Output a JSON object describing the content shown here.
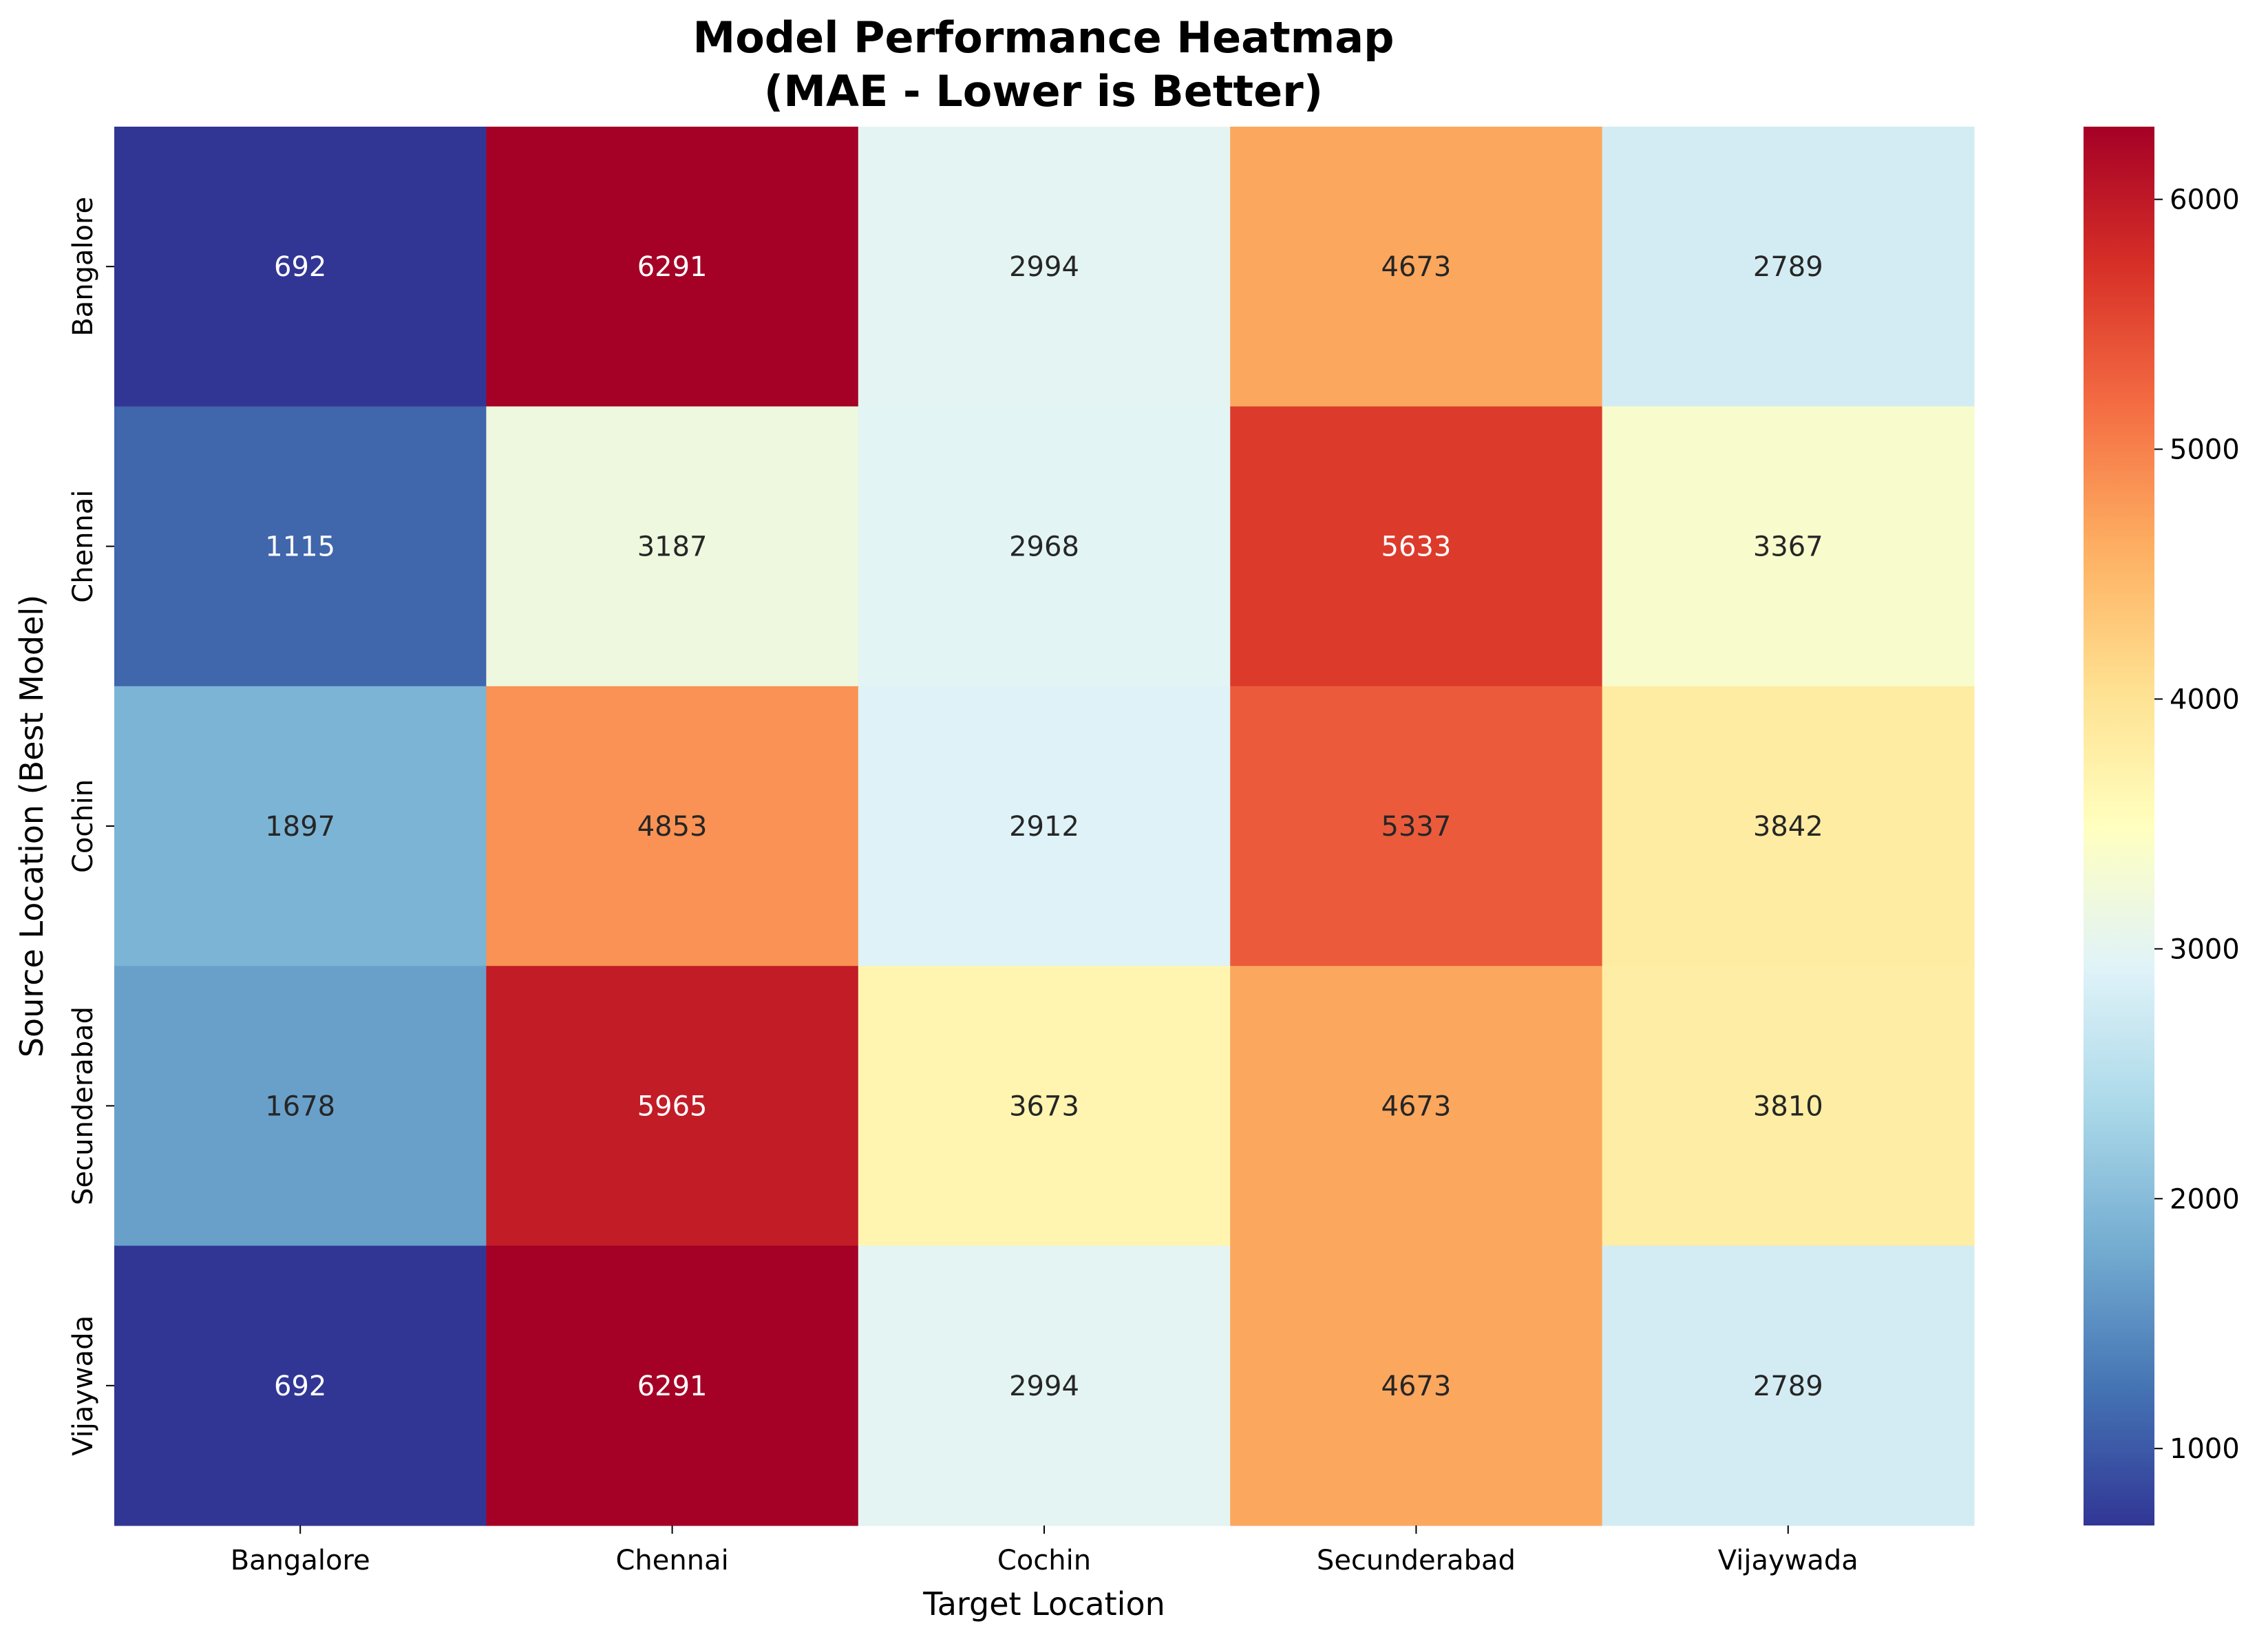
{
  "chart_data": {
    "type": "heatmap",
    "title": "Model Performance Heatmap\n(MAE - Lower is Better)",
    "title_lines": [
      "Model Performance Heatmap",
      "(MAE - Lower is Better)"
    ],
    "xlabel": "Target Location",
    "ylabel": "Source Location (Best Model)",
    "x_categories": [
      "Bangalore",
      "Chennai",
      "Cochin",
      "Secunderabad",
      "Vijaywada"
    ],
    "y_categories": [
      "Bangalore",
      "Chennai",
      "Cochin",
      "Secunderabad",
      "Vijaywada"
    ],
    "values": [
      [
        692,
        6291,
        2994,
        4673,
        2789
      ],
      [
        1115,
        3187,
        2968,
        5633,
        3367
      ],
      [
        1897,
        4853,
        2912,
        5337,
        3842
      ],
      [
        1678,
        5965,
        3673,
        4673,
        3810
      ],
      [
        692,
        6291,
        2994,
        4673,
        2789
      ]
    ],
    "colormap": "RdYlBu_r",
    "colorbar": {
      "vmin": 692,
      "vmax": 6291,
      "ticks": [
        1000,
        2000,
        3000,
        4000,
        5000,
        6000
      ]
    },
    "grid": false,
    "legend": "colorbar-right"
  }
}
